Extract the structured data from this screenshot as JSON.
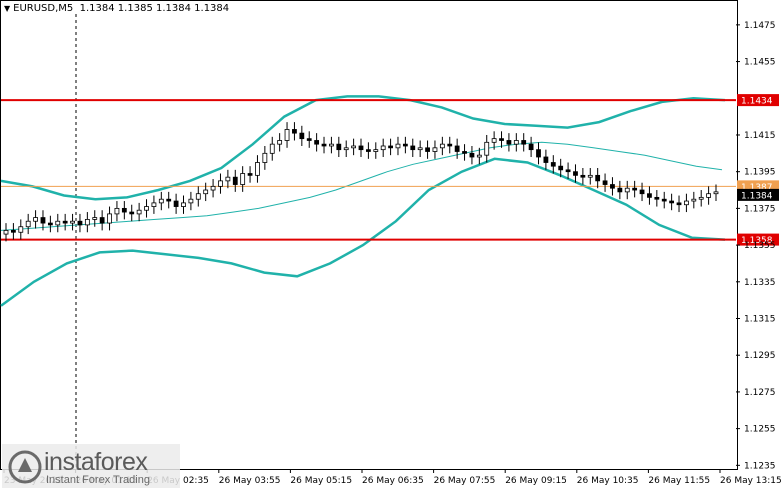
{
  "header": {
    "symbol": "EURUSD,M5",
    "ohlc": "1.1384 1.1385 1.1384 1.1384"
  },
  "logo": {
    "brand": "instaforex",
    "tagline": "Instant Forex Trading"
  },
  "chart_data": {
    "type": "candlestick",
    "ylim": [
      1.1233,
      1.1488
    ],
    "y_ticks": [
      "1.1475",
      "1.1455",
      "1.1415",
      "1.1395",
      "1.1375",
      "1.1355",
      "1.1335",
      "1.1315",
      "1.1295",
      "1.1275",
      "1.1255",
      "1.1235"
    ],
    "x_ticks": [
      "23 May 2022",
      "26 May 01:15",
      "26 May 02:35",
      "26 May 03:55",
      "26 May 05:15",
      "26 May 06:35",
      "26 May 07:55",
      "26 May 09:15",
      "26 May 10:35",
      "26 May 11:55",
      "26 May 13:15"
    ],
    "horizontal_levels": [
      {
        "value": 1.1434,
        "label": "1.1434",
        "color": "#e00000"
      },
      {
        "value": 1.1358,
        "label": "1.1358",
        "color": "#e00000"
      },
      {
        "value": 1.1387,
        "label": "1.1387",
        "color": "#f0a050"
      }
    ],
    "current_price": {
      "value": 1.1384,
      "label": "1.1384"
    },
    "colors": {
      "candles": "#000000",
      "bands": "#20b2aa",
      "ma": "#20b2aa",
      "levels": "#e00000",
      "current_line": "#f0a050"
    },
    "close_series": [
      1.1363,
      1.1362,
      1.1365,
      1.1368,
      1.137,
      1.1367,
      1.1366,
      1.1368,
      1.1367,
      1.1368,
      1.1366,
      1.1369,
      1.137,
      1.1367,
      1.1372,
      1.1375,
      1.1373,
      1.1372,
      1.1374,
      1.1376,
      1.1378,
      1.138,
      1.1379,
      1.1376,
      1.1378,
      1.138,
      1.1383,
      1.1385,
      1.1387,
      1.139,
      1.1392,
      1.1388,
      1.1394,
      1.1393,
      1.14,
      1.1405,
      1.141,
      1.1412,
      1.1418,
      1.1416,
      1.1413,
      1.1412,
      1.141,
      1.1409,
      1.141,
      1.1407,
      1.1408,
      1.1409,
      1.1407,
      1.1406,
      1.1407,
      1.1409,
      1.1408,
      1.141,
      1.1409,
      1.1407,
      1.1408,
      1.1406,
      1.1408,
      1.141,
      1.1409,
      1.1406,
      1.1405,
      1.1403,
      1.1404,
      1.1411,
      1.1413,
      1.1412,
      1.141,
      1.1412,
      1.141,
      1.1407,
      1.1403,
      1.14,
      1.1398,
      1.1396,
      1.1395,
      1.1393,
      1.1392,
      1.1393,
      1.139,
      1.1388,
      1.1386,
      1.1384,
      1.1386,
      1.1385,
      1.1383,
      1.1381,
      1.138,
      1.1379,
      1.1378,
      1.1377,
      1.1379,
      1.138,
      1.1381,
      1.1383,
      1.1384
    ],
    "ma_series": [
      1.1363,
      1.1364,
      1.1365,
      1.1366,
      1.1367,
      1.1368,
      1.1369,
      1.137,
      1.1371,
      1.1373,
      1.1375,
      1.1378,
      1.1381,
      1.1385,
      1.139,
      1.1395,
      1.1399,
      1.1402,
      1.1405,
      1.1408,
      1.141,
      1.1411,
      1.141,
      1.1408,
      1.1406,
      1.1404,
      1.1401,
      1.1398,
      1.1396
    ],
    "upper_band": [
      1.139,
      1.1387,
      1.1382,
      1.138,
      1.1381,
      1.1385,
      1.139,
      1.1397,
      1.141,
      1.1425,
      1.1434,
      1.1436,
      1.1436,
      1.1434,
      1.143,
      1.1424,
      1.1421,
      1.142,
      1.1419,
      1.1422,
      1.1428,
      1.1433,
      1.1435,
      1.1434
    ],
    "lower_band": [
      1.1322,
      1.1335,
      1.1345,
      1.1351,
      1.1352,
      1.135,
      1.1348,
      1.1345,
      1.134,
      1.1338,
      1.1345,
      1.1355,
      1.1368,
      1.1385,
      1.1395,
      1.1402,
      1.14,
      1.1393,
      1.1385,
      1.1377,
      1.1366,
      1.1359,
      1.1358
    ]
  }
}
